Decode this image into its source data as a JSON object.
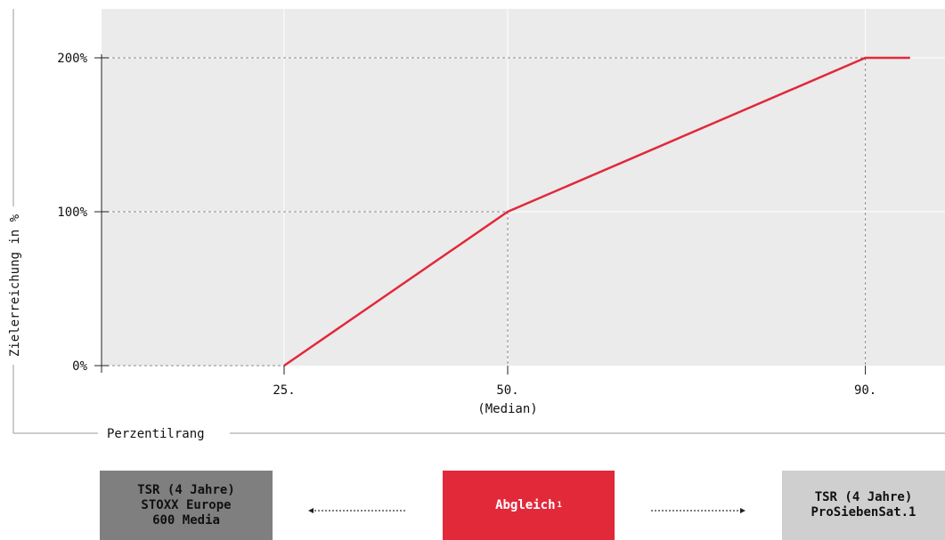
{
  "chart_data": {
    "type": "line",
    "xlabel": "Perzentilrang",
    "ylabel": "Zielerreichung in %",
    "x_ticks": [
      {
        "value": 25,
        "label": "25.",
        "sublabel": ""
      },
      {
        "value": 50,
        "label": "50.",
        "sublabel": "(Median)"
      },
      {
        "value": 90,
        "label": "90.",
        "sublabel": ""
      }
    ],
    "y_ticks": [
      {
        "value": 0,
        "label": "0%"
      },
      {
        "value": 100,
        "label": "100%"
      },
      {
        "value": 200,
        "label": "200%"
      }
    ],
    "xlim": [
      5,
      95
    ],
    "ylim": [
      0,
      200
    ],
    "series": [
      {
        "x": [
          25,
          50,
          90,
          95
        ],
        "y": [
          0,
          100,
          200,
          200
        ],
        "color": "#e1293a"
      }
    ],
    "grid": true,
    "colors": {
      "plot_background": "#ebebeb",
      "line": "#e1293a",
      "grid": "#ffffff",
      "guides": "#8c8c8c"
    }
  },
  "boxes": {
    "left": {
      "text": "TSR (4 Jahre)\nSTOXX Europe\n600 Media",
      "color": "#7f7f7f"
    },
    "center": {
      "text": "Abgleich",
      "footnote": "1",
      "color": "#e2293a"
    },
    "right": {
      "text": "TSR (4 Jahre)\nProSiebenSat.1",
      "color": "#cfcfcf"
    }
  }
}
